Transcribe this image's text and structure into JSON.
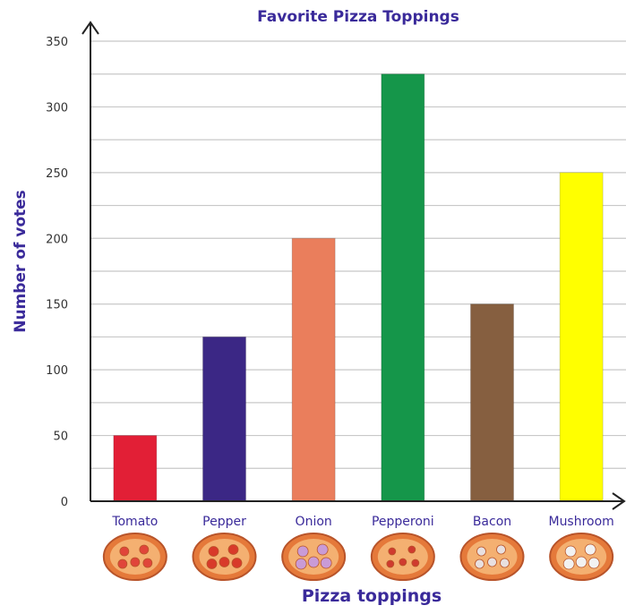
{
  "chart_data": {
    "type": "bar",
    "title": "Favorite Pizza Toppings",
    "xlabel": "Pizza toppings",
    "ylabel": "Number of votes",
    "categories": [
      "Tomato",
      "Pepper",
      "Onion",
      "Pepperoni",
      "Bacon",
      "Mushroom"
    ],
    "values": [
      50,
      125,
      200,
      325,
      150,
      250
    ],
    "bar_colors": [
      "#e21f36",
      "#3b2785",
      "#ea7e5c",
      "#15964a",
      "#865f40",
      "#ffff00"
    ],
    "ylim": [
      0,
      350
    ],
    "yticks": [
      0,
      50,
      100,
      150,
      200,
      250,
      300,
      350
    ],
    "grid": true,
    "grid_color": "#c8c8c8",
    "label_color": "#3a2a9a",
    "icons": [
      "tomato-pizza-icon",
      "pepper-pizza-icon",
      "onion-pizza-icon",
      "pepperoni-pizza-icon",
      "bacon-pizza-icon",
      "mushroom-pizza-icon"
    ]
  }
}
